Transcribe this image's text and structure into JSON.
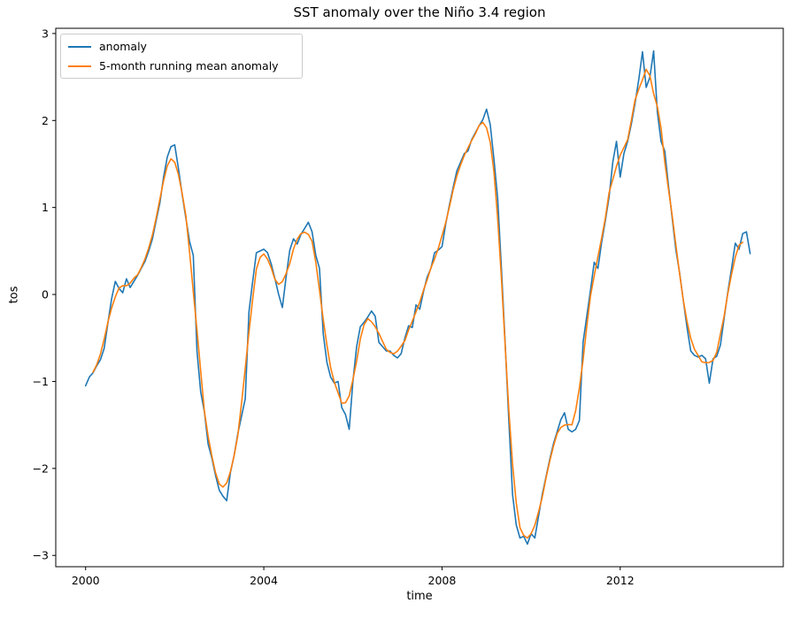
{
  "chart": {
    "title": "SST anomaly over the Niño 3.4 region",
    "xlabel": "time",
    "ylabel": "tos"
  },
  "chart_data": {
    "type": "line",
    "title": "SST anomaly over the Niño 3.4 region",
    "xlabel": "time",
    "ylabel": "tos",
    "grid": false,
    "legend_position": "upper left",
    "x_start": "2000-01",
    "x_step_months": 1,
    "x_ticks": [
      2000,
      2004,
      2008,
      2012
    ],
    "x_tick_labels": [
      "2000",
      "2004",
      "2008",
      "2012"
    ],
    "y_ticks": [
      3,
      2,
      1,
      0,
      -1,
      -2,
      -3
    ],
    "y_tick_labels": [
      "3",
      "2",
      "1",
      "0",
      "−1",
      "−2",
      "−3"
    ],
    "xlim_years": [
      1999.33,
      2015.66
    ],
    "ylim": [
      -3.13,
      3.06
    ],
    "series": [
      {
        "name": "anomaly",
        "color": "#1f77b4",
        "values": [
          -1.05,
          -0.95,
          -0.9,
          -0.82,
          -0.75,
          -0.62,
          -0.33,
          -0.05,
          0.15,
          0.07,
          0.02,
          0.18,
          0.08,
          0.15,
          0.22,
          0.3,
          0.38,
          0.5,
          0.64,
          0.85,
          1.05,
          1.35,
          1.58,
          1.7,
          1.72,
          1.45,
          1.15,
          0.88,
          0.61,
          0.45,
          -0.65,
          -1.12,
          -1.35,
          -1.72,
          -1.88,
          -2.08,
          -2.25,
          -2.32,
          -2.37,
          -2.05,
          -1.85,
          -1.6,
          -1.4,
          -1.2,
          -0.2,
          0.15,
          0.48,
          0.5,
          0.52,
          0.48,
          0.35,
          0.18,
          0.0,
          -0.15,
          0.2,
          0.51,
          0.64,
          0.58,
          0.69,
          0.76,
          0.83,
          0.72,
          0.45,
          0.3,
          -0.45,
          -0.78,
          -0.95,
          -1.02,
          -1.0,
          -1.3,
          -1.38,
          -1.55,
          -1.0,
          -0.6,
          -0.37,
          -0.32,
          -0.26,
          -0.19,
          -0.25,
          -0.55,
          -0.6,
          -0.65,
          -0.65,
          -0.7,
          -0.73,
          -0.68,
          -0.5,
          -0.36,
          -0.38,
          -0.12,
          -0.17,
          0.03,
          0.2,
          0.3,
          0.48,
          0.51,
          0.55,
          0.81,
          1.03,
          1.23,
          1.42,
          1.52,
          1.62,
          1.65,
          1.78,
          1.86,
          1.94,
          2.01,
          2.13,
          1.95,
          1.55,
          1.1,
          0.3,
          -0.55,
          -1.45,
          -2.3,
          -2.65,
          -2.8,
          -2.78,
          -2.87,
          -2.75,
          -2.8,
          -2.55,
          -2.3,
          -2.1,
          -1.9,
          -1.72,
          -1.58,
          -1.44,
          -1.36,
          -1.55,
          -1.58,
          -1.55,
          -1.45,
          -0.55,
          -0.25,
          0.05,
          0.37,
          0.3,
          0.6,
          0.85,
          1.12,
          1.52,
          1.76,
          1.35,
          1.62,
          1.76,
          1.96,
          2.2,
          2.47,
          2.79,
          2.38,
          2.5,
          2.8,
          2.1,
          1.76,
          1.65,
          1.25,
          0.88,
          0.51,
          0.25,
          -0.07,
          -0.38,
          -0.65,
          -0.7,
          -0.72,
          -0.7,
          -0.74,
          -1.02,
          -0.74,
          -0.71,
          -0.58,
          -0.27,
          0.03,
          0.3,
          0.59,
          0.52,
          0.7,
          0.72,
          0.47
        ]
      },
      {
        "name": "5-month running mean anomaly",
        "color": "#ff7f0e",
        "derivation": "5-month centered running mean of the anomaly series (valid from 3rd to 178th month)"
      }
    ]
  }
}
